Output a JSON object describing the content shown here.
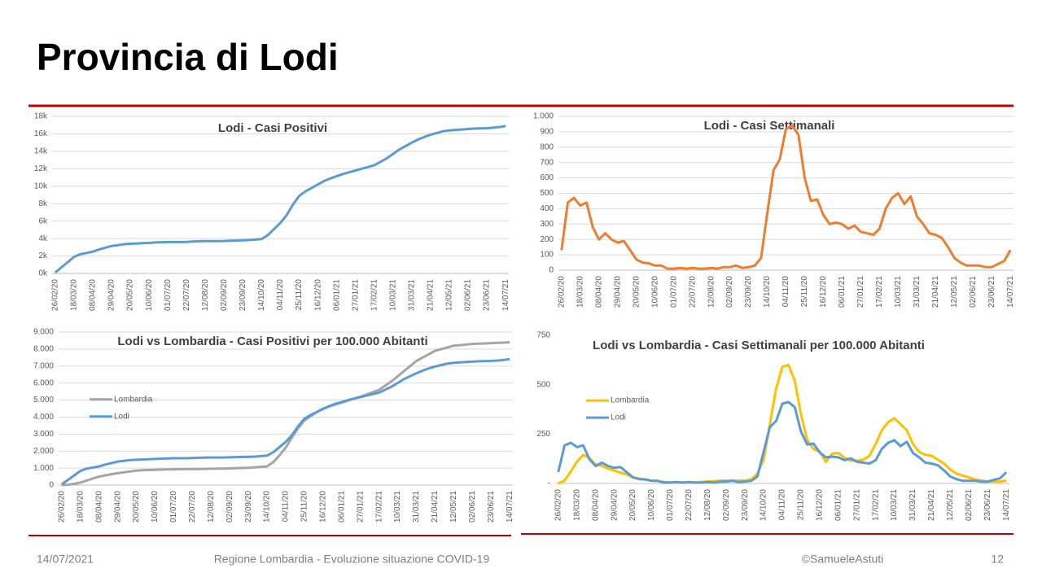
{
  "title": "Provincia di Lodi",
  "footer": {
    "date": "14/07/2021",
    "subject": "Regione Lombardia - Evoluzione situazione COVID-19",
    "author": "©SamueleAstuti",
    "page": "12"
  },
  "chart_data": [
    {
      "type": "line",
      "title": "Lodi - Casi Positivi",
      "color": "#5b9bd5",
      "grid": true,
      "categories": [
        "26/02/20",
        null,
        null,
        "18/03/20",
        null,
        null,
        "08/04/20",
        null,
        null,
        "29/04/20",
        null,
        null,
        "20/05/20",
        null,
        null,
        "10/06/20",
        null,
        null,
        "01/07/20",
        null,
        null,
        "22/07/20",
        null,
        null,
        "12/08/20",
        null,
        null,
        "02/09/20",
        null,
        null,
        "23/09/20",
        null,
        null,
        "14/10/20",
        null,
        null,
        "04/11/20",
        null,
        null,
        "25/11/20",
        null,
        null,
        "16/12/20",
        null,
        null,
        "06/01/21",
        null,
        null,
        "27/01/21",
        null,
        null,
        "17/02/21",
        null,
        null,
        "10/03/21",
        null,
        null,
        "31/03/21",
        null,
        null,
        "21/04/21",
        null,
        null,
        "12/05/21",
        null,
        null,
        "02/06/21",
        null,
        null,
        "23/06/21",
        null,
        null,
        "14/07/21"
      ],
      "values": [
        100,
        700,
        1300,
        1900,
        2200,
        2350,
        2500,
        2750,
        2950,
        3150,
        3250,
        3350,
        3400,
        3430,
        3470,
        3500,
        3550,
        3580,
        3600,
        3600,
        3600,
        3620,
        3660,
        3690,
        3700,
        3700,
        3700,
        3720,
        3760,
        3780,
        3800,
        3820,
        3880,
        3950,
        4400,
        5100,
        5800,
        6700,
        7900,
        8900,
        9400,
        9800,
        10200,
        10600,
        10900,
        11150,
        11400,
        11600,
        11800,
        12000,
        12200,
        12400,
        12800,
        13200,
        13700,
        14200,
        14600,
        15000,
        15350,
        15650,
        15900,
        16100,
        16300,
        16400,
        16450,
        16500,
        16550,
        16600,
        16620,
        16650,
        16700,
        16780,
        16900
      ],
      "ylim": [
        0,
        18000
      ],
      "yticks": [
        {
          "value": 0,
          "label": "0k"
        },
        {
          "value": 2000,
          "label": "2k"
        },
        {
          "value": 4000,
          "label": "4k"
        },
        {
          "value": 6000,
          "label": "6k"
        },
        {
          "value": 8000,
          "label": "8k"
        },
        {
          "value": 10000,
          "label": "10k"
        },
        {
          "value": 12000,
          "label": "12k"
        },
        {
          "value": 14000,
          "label": "14k"
        },
        {
          "value": 16000,
          "label": "16k"
        },
        {
          "value": 18000,
          "label": "18k"
        }
      ]
    },
    {
      "type": "line",
      "title": "Lodi - Casi Settimanali",
      "color": "#ed7d31",
      "grid": true,
      "categories": [
        "26/02/20",
        null,
        null,
        "18/03/20",
        null,
        null,
        "08/04/20",
        null,
        null,
        "29/04/20",
        null,
        null,
        "20/05/20",
        null,
        null,
        "10/06/20",
        null,
        null,
        "01/07/20",
        null,
        null,
        "22/07/20",
        null,
        null,
        "12/08/20",
        null,
        null,
        "02/09/20",
        null,
        null,
        "23/09/20",
        null,
        null,
        "14/10/20",
        null,
        null,
        "04/11/20",
        null,
        null,
        "25/11/20",
        null,
        null,
        "16/12/20",
        null,
        null,
        "06/01/21",
        null,
        null,
        "27/01/21",
        null,
        null,
        "17/02/21",
        null,
        null,
        "10/03/21",
        null,
        null,
        "31/03/21",
        null,
        null,
        "21/04/21",
        null,
        null,
        "12/05/21",
        null,
        null,
        "02/06/21",
        null,
        null,
        "23/06/21",
        null,
        null,
        "14/07/21"
      ],
      "values": [
        130,
        440,
        470,
        420,
        440,
        280,
        200,
        240,
        200,
        180,
        190,
        130,
        70,
        50,
        45,
        30,
        30,
        10,
        10,
        15,
        10,
        15,
        10,
        10,
        15,
        10,
        20,
        20,
        30,
        15,
        20,
        30,
        80,
        370,
        650,
        720,
        920,
        940,
        880,
        600,
        450,
        460,
        360,
        300,
        310,
        300,
        270,
        290,
        250,
        240,
        230,
        270,
        400,
        470,
        500,
        430,
        480,
        350,
        300,
        240,
        230,
        210,
        150,
        80,
        50,
        30,
        30,
        30,
        20,
        20,
        40,
        60,
        130
      ],
      "ylim": [
        0,
        1000
      ],
      "yticks": [
        0,
        100,
        200,
        300,
        400,
        500,
        600,
        700,
        800,
        900,
        {
          "value": 1000,
          "label": "1.000"
        }
      ]
    },
    {
      "type": "line",
      "title": "Lodi vs Lombardia - Casi Positivi per 100.000 Abitanti",
      "grid": true,
      "legend": "left",
      "categories": [
        "26/02/20",
        null,
        null,
        "18/03/20",
        null,
        null,
        "08/04/20",
        null,
        null,
        "29/04/20",
        null,
        null,
        "20/05/20",
        null,
        null,
        "10/06/20",
        null,
        null,
        "01/07/20",
        null,
        null,
        "22/07/20",
        null,
        null,
        "12/08/20",
        null,
        null,
        "02/09/20",
        null,
        null,
        "23/09/20",
        null,
        null,
        "14/10/20",
        null,
        null,
        "04/11/20",
        null,
        null,
        "25/11/20",
        null,
        null,
        "16/12/20",
        null,
        null,
        "06/01/21",
        null,
        null,
        "27/01/21",
        null,
        null,
        "17/02/21",
        null,
        null,
        "10/03/21",
        null,
        null,
        "31/03/21",
        null,
        null,
        "21/04/21",
        null,
        null,
        "12/05/21",
        null,
        null,
        "02/06/21",
        null,
        null,
        "23/06/21",
        null,
        null,
        "14/07/21"
      ],
      "series": [
        {
          "name": "Lombardia",
          "color": "#a5a5a5",
          "values": [
            0,
            20,
            70,
            150,
            270,
            390,
            500,
            570,
            640,
            700,
            750,
            800,
            850,
            870,
            885,
            900,
            910,
            920,
            930,
            935,
            938,
            940,
            947,
            954,
            960,
            967,
            974,
            980,
            993,
            1006,
            1020,
            1045,
            1070,
            1100,
            1350,
            1750,
            2200,
            2800,
            3350,
            3800,
            4050,
            4300,
            4500,
            4620,
            4740,
            4850,
            4970,
            5090,
            5200,
            5330,
            5460,
            5600,
            5850,
            6100,
            6400,
            6700,
            7000,
            7300,
            7500,
            7700,
            7900,
            8000,
            8100,
            8200,
            8230,
            8270,
            8300,
            8320,
            8330,
            8350,
            8370,
            8380,
            8400
          ]
        },
        {
          "name": "Lodi",
          "color": "#5b9bd5",
          "values": [
            44,
            307,
            570,
            833,
            965,
            1031,
            1096,
            1206,
            1294,
            1382,
            1425,
            1469,
            1491,
            1504,
            1522,
            1535,
            1557,
            1570,
            1579,
            1579,
            1579,
            1588,
            1605,
            1618,
            1623,
            1623,
            1623,
            1632,
            1649,
            1658,
            1667,
            1675,
            1702,
            1732,
            1930,
            2237,
            2544,
            2939,
            3465,
            3904,
            4123,
            4298,
            4474,
            4649,
            4781,
            4890,
            5000,
            5088,
            5175,
            5263,
            5351,
            5439,
            5614,
            5789,
            6009,
            6228,
            6404,
            6579,
            6732,
            6864,
            6974,
            7061,
            7149,
            7193,
            7215,
            7237,
            7259,
            7281,
            7289,
            7303,
            7325,
            7360,
            7412
          ]
        }
      ],
      "ylim": [
        0,
        9000
      ],
      "yticks": [
        0,
        {
          "value": 1000,
          "label": "1.000"
        },
        {
          "value": 2000,
          "label": "2.000"
        },
        {
          "value": 3000,
          "label": "3.000"
        },
        {
          "value": 4000,
          "label": "4.000"
        },
        {
          "value": 5000,
          "label": "5.000"
        },
        {
          "value": 6000,
          "label": "6.000"
        },
        {
          "value": 7000,
          "label": "7.000"
        },
        {
          "value": 8000,
          "label": "8.000"
        },
        {
          "value": 9000,
          "label": "9.000"
        }
      ]
    },
    {
      "type": "line",
      "title": "Lodi vs Lombardia - Casi Settimanali per 100.000 Abitanti",
      "grid": false,
      "legend": "left",
      "categories": [
        "26/02/20",
        null,
        null,
        "18/03/20",
        null,
        null,
        "08/04/20",
        null,
        null,
        "29/04/20",
        null,
        null,
        "20/05/20",
        null,
        null,
        "10/06/20",
        null,
        null,
        "01/07/20",
        null,
        null,
        "22/07/20",
        null,
        null,
        "12/08/20",
        null,
        null,
        "02/09/20",
        null,
        null,
        "23/09/20",
        null,
        null,
        "14/10/20",
        null,
        null,
        "04/11/20",
        null,
        null,
        "25/11/20",
        null,
        null,
        "16/12/20",
        null,
        null,
        "06/01/21",
        null,
        null,
        "27/01/21",
        null,
        null,
        "17/02/21",
        null,
        null,
        "10/03/21",
        null,
        null,
        "31/03/21",
        null,
        null,
        "21/04/21",
        null,
        null,
        "12/05/21",
        null,
        null,
        "02/06/21",
        null,
        null,
        "23/06/21",
        null,
        null,
        "14/07/21"
      ],
      "series": [
        {
          "name": "Lombardia",
          "color": "#ffc000",
          "values": [
            0,
            15,
            60,
            110,
            145,
            130,
            95,
            90,
            75,
            65,
            55,
            45,
            30,
            25,
            20,
            15,
            12,
            8,
            6,
            5,
            5,
            5,
            6,
            8,
            10,
            12,
            14,
            15,
            15,
            15,
            15,
            20,
            50,
            120,
            300,
            480,
            590,
            600,
            520,
            350,
            220,
            175,
            160,
            110,
            150,
            155,
            130,
            115,
            115,
            120,
            140,
            200,
            270,
            310,
            330,
            300,
            270,
            200,
            160,
            145,
            140,
            120,
            100,
            70,
            50,
            40,
            30,
            20,
            15,
            10,
            10,
            10,
            15
          ]
        },
        {
          "name": "Lodi",
          "color": "#5b9bd5",
          "values": [
            57,
            193,
            206,
            184,
            193,
            123,
            88,
            105,
            88,
            79,
            83,
            57,
            31,
            22,
            20,
            13,
            13,
            4,
            4,
            7,
            4,
            7,
            4,
            4,
            7,
            4,
            9,
            9,
            13,
            7,
            9,
            13,
            35,
            162,
            285,
            316,
            404,
            412,
            386,
            263,
            197,
            202,
            158,
            132,
            136,
            132,
            118,
            127,
            110,
            105,
            101,
            118,
            175,
            206,
            219,
            189,
            211,
            154,
            132,
            105,
            101,
            92,
            66,
            35,
            22,
            13,
            13,
            13,
            9,
            9,
            18,
            26,
            57
          ]
        }
      ],
      "ylim": [
        0,
        750
      ],
      "yticks": [
        {
          "value": 0,
          "label": "-"
        },
        250,
        500,
        750
      ]
    }
  ]
}
